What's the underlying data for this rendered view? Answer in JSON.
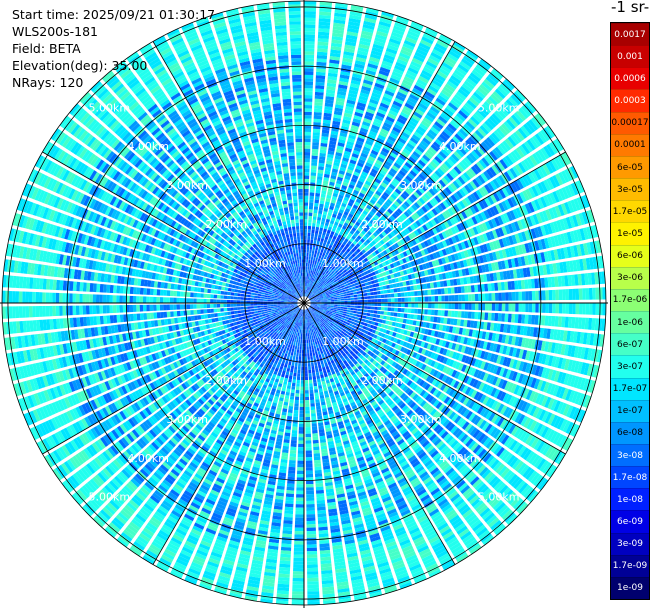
{
  "info": {
    "start_time": "Start time: 2025/09/21 01:30:17",
    "instrument": "WLS200s-181",
    "field": "Field: BETA",
    "elevation": "Elevation(deg): 35.00",
    "nrays": "NRays: 120"
  },
  "colorbar": {
    "units_fragment": "-1 sr-",
    "labels": [
      "0.0017",
      "0.001",
      "0.0006",
      "0.0003",
      "0.00017",
      "0.0001",
      "6e-05",
      "3e-05",
      "1.7e-05",
      "1e-05",
      "6e-06",
      "3e-06",
      "1.7e-06",
      "1e-06",
      "6e-07",
      "3e-07",
      "1.7e-07",
      "1e-07",
      "6e-08",
      "3e-08",
      "1.7e-08",
      "1e-08",
      "6e-09",
      "3e-09",
      "1.7e-09",
      "1e-09"
    ],
    "colors": [
      "#a80000",
      "#c80000",
      "#e80000",
      "#ff2a00",
      "#ff5a00",
      "#ff7a00",
      "#ff9a00",
      "#ffbb00",
      "#ffd800",
      "#fff200",
      "#e6ff1a",
      "#b8ff4a",
      "#8cff74",
      "#66ffa0",
      "#45ffc8",
      "#22ffee",
      "#00e6ff",
      "#00c0ff",
      "#0096ff",
      "#006eff",
      "#0046ff",
      "#0020ff",
      "#0000e6",
      "#0000c0",
      "#000096",
      "#00006e"
    ],
    "text_colors": [
      "#ffffff",
      "#ffffff",
      "#ffffff",
      "#ffffff",
      "#000000",
      "#000000",
      "#000000",
      "#000000",
      "#000000",
      "#000000",
      "#000000",
      "#000000",
      "#000000",
      "#000000",
      "#000000",
      "#000000",
      "#000000",
      "#000000",
      "#000000",
      "#ffffff",
      "#ffffff",
      "#ffffff",
      "#ffffff",
      "#ffffff",
      "#ffffff",
      "#ffffff"
    ]
  },
  "range_rings": [
    {
      "label": "1.00km",
      "km": 1
    },
    {
      "label": "2.00km",
      "km": 2
    },
    {
      "label": "3.00km",
      "km": 3
    },
    {
      "label": "4.00km",
      "km": 4
    },
    {
      "label": "5.00km",
      "km": 5
    }
  ],
  "plot": {
    "max_range_km": 5.1,
    "nrays": 120,
    "ring_label_color": "#ffffff",
    "grid_color": "#000000"
  }
}
